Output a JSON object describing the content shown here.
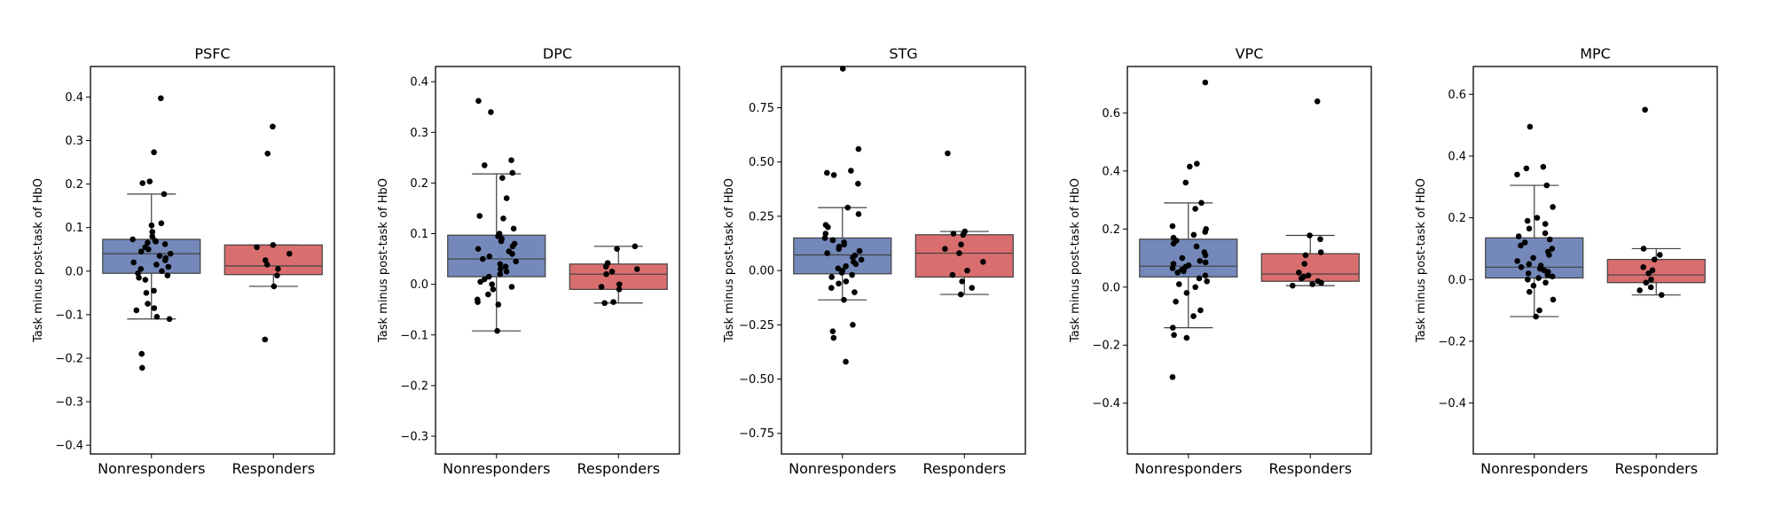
{
  "chart_data": [
    {
      "type": "box",
      "title": "PSFC",
      "ylabel": "Task minus post-task of HbO",
      "categories": [
        "Nonresponders",
        "Responders"
      ],
      "ylim": [
        -0.42,
        0.47
      ],
      "yticks": [
        -0.4,
        -0.3,
        -0.2,
        -0.1,
        0.0,
        0.1,
        0.2,
        0.3,
        0.4
      ],
      "ytick_labels": [
        "−0.4",
        "−0.3",
        "−0.2",
        "−0.1",
        "0.0",
        "0.1",
        "0.2",
        "0.3",
        "0.4"
      ],
      "colors": [
        "#7489b9",
        "#d96e6f"
      ],
      "boxes": [
        {
          "q1": -0.005,
          "median": 0.04,
          "q3": 0.073,
          "whisker_low": -0.11,
          "whisker_high": 0.177
        },
        {
          "q1": -0.008,
          "median": 0.012,
          "q3": 0.06,
          "whisker_low": -0.035,
          "whisker_high": 0.06
        }
      ],
      "points": [
        [
          0.397,
          0.273,
          0.206,
          0.202,
          0.177,
          0.11,
          0.105,
          0.09,
          0.08,
          0.073,
          0.07,
          0.068,
          0.065,
          0.062,
          0.055,
          0.05,
          0.045,
          0.04,
          0.035,
          0.03,
          0.025,
          0.02,
          0.015,
          0.01,
          0.005,
          0.0,
          -0.005,
          -0.01,
          -0.015,
          -0.02,
          -0.045,
          -0.05,
          -0.075,
          -0.085,
          -0.09,
          -0.105,
          -0.11,
          -0.19,
          -0.222
        ],
        [
          0.332,
          0.27,
          0.06,
          0.055,
          0.04,
          0.025,
          0.015,
          0.005,
          -0.01,
          -0.035,
          -0.157
        ]
      ]
    },
    {
      "type": "box",
      "title": "DPC",
      "ylabel": "Task minus post-task of HbO",
      "categories": [
        "Nonresponders",
        "Responders"
      ],
      "ylim": [
        -0.335,
        0.43
      ],
      "yticks": [
        -0.3,
        -0.2,
        -0.1,
        0.0,
        0.1,
        0.2,
        0.3,
        0.4
      ],
      "ytick_labels": [
        "−0.3",
        "−0.2",
        "−0.1",
        "0.0",
        "0.1",
        "0.2",
        "0.3",
        "0.4"
      ],
      "colors": [
        "#7489b9",
        "#d96e6f"
      ],
      "boxes": [
        {
          "q1": 0.015,
          "median": 0.05,
          "q3": 0.097,
          "whisker_low": -0.092,
          "whisker_high": 0.218
        },
        {
          "q1": -0.01,
          "median": 0.02,
          "q3": 0.04,
          "whisker_low": -0.037,
          "whisker_high": 0.075
        }
      ],
      "points": [
        [
          0.362,
          0.34,
          0.245,
          0.235,
          0.22,
          0.21,
          0.17,
          0.135,
          0.13,
          0.11,
          0.1,
          0.095,
          0.09,
          0.085,
          0.08,
          0.075,
          0.07,
          0.065,
          0.06,
          0.055,
          0.05,
          0.045,
          0.04,
          0.035,
          0.03,
          0.025,
          0.02,
          0.015,
          0.01,
          0.005,
          0.0,
          -0.005,
          -0.01,
          -0.02,
          -0.03,
          -0.035,
          -0.04,
          -0.092
        ],
        [
          0.075,
          0.07,
          0.042,
          0.035,
          0.03,
          0.025,
          0.02,
          0.0,
          -0.005,
          -0.01,
          -0.035,
          -0.037
        ]
      ]
    },
    {
      "type": "box",
      "title": "STG",
      "ylabel": "Task minus post-task of HbO",
      "categories": [
        "Nonresponders",
        "Responders"
      ],
      "ylim": [
        -0.845,
        0.94
      ],
      "yticks": [
        -0.75,
        -0.5,
        -0.25,
        0.0,
        0.25,
        0.5,
        0.75
      ],
      "ytick_labels": [
        "−0.75",
        "−0.50",
        "−0.25",
        "0.00",
        "0.25",
        "0.50",
        "0.75"
      ],
      "colors": [
        "#7489b9",
        "#d96e6f"
      ],
      "boxes": [
        {
          "q1": -0.015,
          "median": 0.072,
          "q3": 0.15,
          "whisker_low": -0.135,
          "whisker_high": 0.29
        },
        {
          "q1": -0.03,
          "median": 0.08,
          "q3": 0.165,
          "whisker_low": -0.11,
          "whisker_high": 0.18
        }
      ],
      "points": [
        [
          0.93,
          0.56,
          0.46,
          0.45,
          0.44,
          0.4,
          0.29,
          0.26,
          0.21,
          0.2,
          0.17,
          0.15,
          0.14,
          0.13,
          0.12,
          0.11,
          0.1,
          0.09,
          0.08,
          0.07,
          0.06,
          0.05,
          0.04,
          0.03,
          0.02,
          0.01,
          0.0,
          -0.01,
          -0.02,
          -0.03,
          -0.05,
          -0.06,
          -0.08,
          -0.1,
          -0.135,
          -0.25,
          -0.28,
          -0.31,
          -0.42
        ],
        [
          0.54,
          0.18,
          0.17,
          0.165,
          0.12,
          0.1,
          0.08,
          0.04,
          0.0,
          -0.02,
          -0.05,
          -0.08,
          -0.11
        ]
      ]
    },
    {
      "type": "box",
      "title": "VPC",
      "ylabel": "Task minus post-task of HbO",
      "categories": [
        "Nonresponders",
        "Responders"
      ],
      "ylim": [
        -0.575,
        0.76
      ],
      "yticks": [
        -0.4,
        -0.2,
        0.0,
        0.2,
        0.4,
        0.6
      ],
      "ytick_labels": [
        "−0.4",
        "−0.2",
        "0.0",
        "0.2",
        "0.4",
        "0.6"
      ],
      "colors": [
        "#7489b9",
        "#d96e6f"
      ],
      "boxes": [
        {
          "q1": 0.035,
          "median": 0.072,
          "q3": 0.165,
          "whisker_low": -0.14,
          "whisker_high": 0.29
        },
        {
          "q1": 0.02,
          "median": 0.045,
          "q3": 0.115,
          "whisker_low": 0.005,
          "whisker_high": 0.178
        }
      ],
      "points": [
        [
          0.705,
          0.425,
          0.415,
          0.36,
          0.29,
          0.27,
          0.21,
          0.2,
          0.19,
          0.18,
          0.17,
          0.16,
          0.15,
          0.14,
          0.12,
          0.11,
          0.1,
          0.09,
          0.085,
          0.08,
          0.075,
          0.07,
          0.065,
          0.06,
          0.055,
          0.05,
          0.04,
          0.03,
          0.02,
          0.01,
          0.0,
          -0.02,
          -0.05,
          -0.08,
          -0.1,
          -0.14,
          -0.165,
          -0.175,
          -0.31
        ],
        [
          0.64,
          0.178,
          0.165,
          0.12,
          0.11,
          0.08,
          0.05,
          0.04,
          0.035,
          0.03,
          0.02,
          0.015,
          0.01,
          0.005
        ]
      ]
    },
    {
      "type": "box",
      "title": "MPC",
      "ylabel": "Task minus post-task of HbO",
      "categories": [
        "Nonresponders",
        "Responders"
      ],
      "ylim": [
        -0.565,
        0.69
      ],
      "yticks": [
        -0.4,
        -0.2,
        0.0,
        0.2,
        0.4,
        0.6
      ],
      "ytick_labels": [
        "−0.4",
        "−0.2",
        "0.0",
        "0.2",
        "0.4",
        "0.6"
      ],
      "colors": [
        "#7489b9",
        "#d96e6f"
      ],
      "boxes": [
        {
          "q1": 0.005,
          "median": 0.04,
          "q3": 0.135,
          "whisker_low": -0.12,
          "whisker_high": 0.305
        },
        {
          "q1": -0.01,
          "median": 0.015,
          "q3": 0.065,
          "whisker_low": -0.05,
          "whisker_high": 0.1
        }
      ],
      "points": [
        [
          0.495,
          0.365,
          0.36,
          0.34,
          0.305,
          0.235,
          0.2,
          0.19,
          0.18,
          0.165,
          0.15,
          0.14,
          0.13,
          0.12,
          0.11,
          0.1,
          0.09,
          0.08,
          0.07,
          0.06,
          0.05,
          0.045,
          0.04,
          0.035,
          0.03,
          0.025,
          0.02,
          0.015,
          0.01,
          0.005,
          0.0,
          -0.01,
          -0.02,
          -0.04,
          -0.065,
          -0.1,
          -0.12
        ],
        [
          0.55,
          0.1,
          0.08,
          0.065,
          0.04,
          0.03,
          0.02,
          0.0,
          -0.01,
          -0.025,
          -0.035,
          -0.05
        ]
      ]
    }
  ]
}
